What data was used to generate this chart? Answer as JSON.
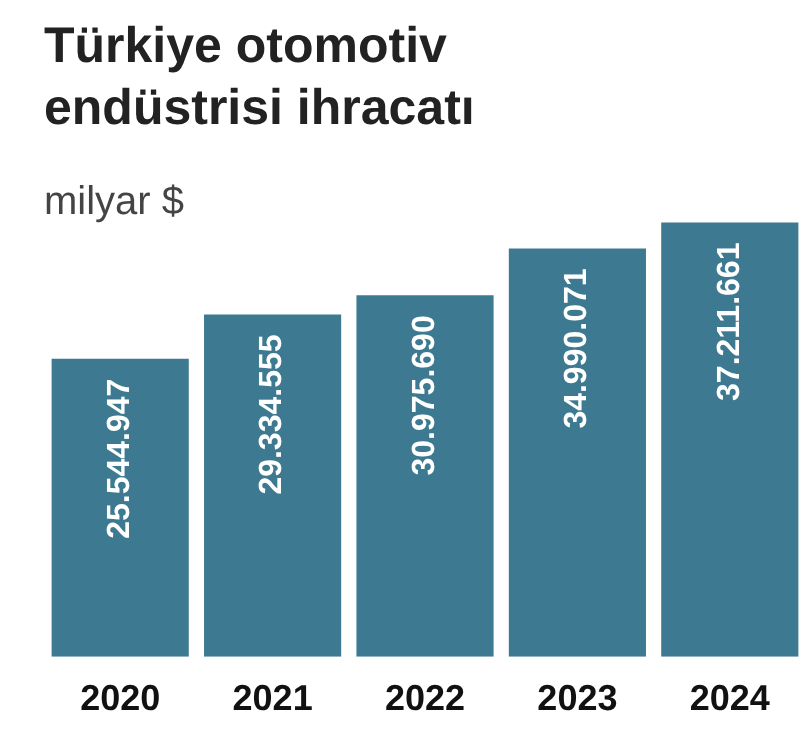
{
  "chart_data": {
    "type": "bar",
    "title": "Türkiye otomotiv endüstrisi ihracatı",
    "subtitle": "milyar $",
    "categories": [
      "2020",
      "2021",
      "2022",
      "2023",
      "2024"
    ],
    "values": [
      25544947,
      29334555,
      30975690,
      34990071,
      37211661
    ],
    "value_labels": [
      "25.544.947",
      "29.334.555",
      "30.975.690",
      "34.990.071",
      "37.211.661"
    ],
    "color": "#3d7a92",
    "relative": false
  }
}
